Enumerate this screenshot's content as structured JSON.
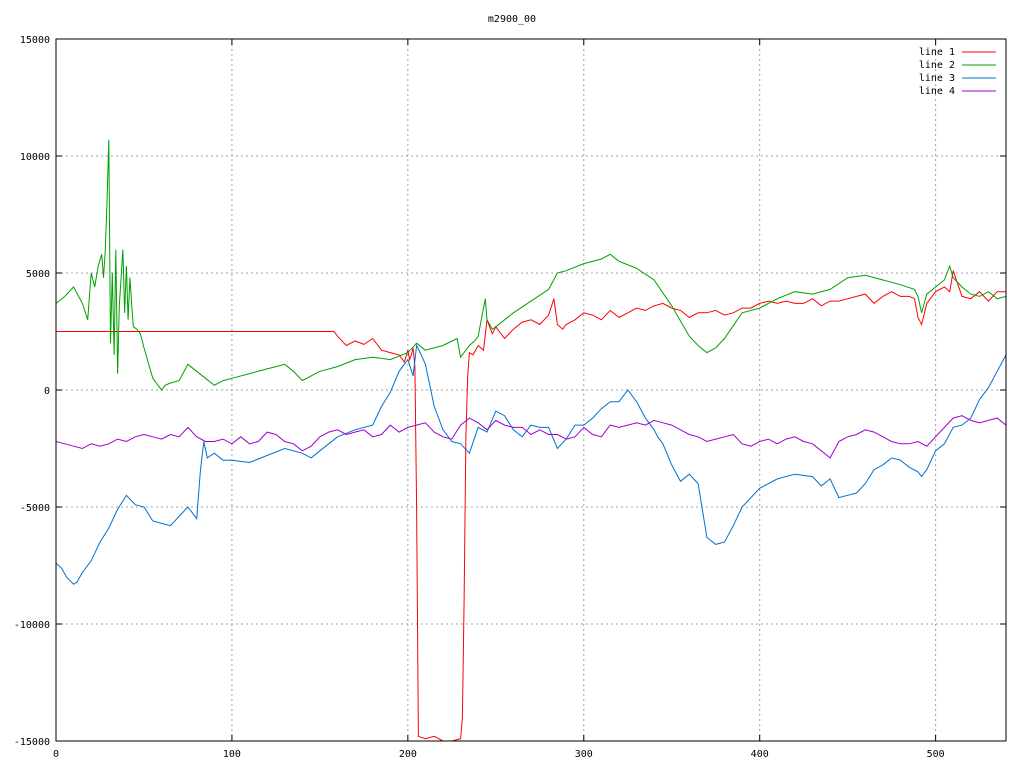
{
  "chart_data": {
    "type": "line",
    "title": "m2900_00",
    "xlabel": "",
    "ylabel": "",
    "xlim": [
      0,
      540
    ],
    "ylim": [
      -15000,
      15000
    ],
    "xticks": [
      0,
      100,
      200,
      300,
      400,
      500
    ],
    "yticks": [
      -15000,
      -10000,
      -5000,
      0,
      5000,
      10000,
      15000
    ],
    "grid": true,
    "legend_position": "top-right",
    "series": [
      {
        "name": "line 1",
        "color": "#ff0000",
        "x": [
          0,
          50,
          100,
          150,
          158,
          160,
          165,
          170,
          175,
          180,
          185,
          190,
          195,
          198,
          200,
          201,
          202,
          203,
          204,
          205,
          206,
          210,
          215,
          220,
          225,
          230,
          231,
          232,
          233,
          234,
          235,
          237,
          240,
          243,
          245,
          248,
          250,
          255,
          260,
          265,
          270,
          275,
          280,
          283,
          285,
          288,
          290,
          295,
          300,
          305,
          310,
          315,
          320,
          325,
          330,
          335,
          340,
          345,
          350,
          355,
          360,
          365,
          370,
          375,
          380,
          385,
          390,
          395,
          400,
          405,
          410,
          415,
          420,
          425,
          430,
          435,
          440,
          445,
          450,
          455,
          460,
          465,
          470,
          475,
          480,
          485,
          488,
          490,
          492,
          495,
          500,
          505,
          508,
          510,
          515,
          520,
          525,
          530,
          535,
          540
        ],
        "values": [
          2500,
          2500,
          2500,
          2500,
          2500,
          2300,
          1900,
          2100,
          1950,
          2200,
          1700,
          1600,
          1500,
          1200,
          1700,
          1300,
          1500,
          1800,
          1000,
          -5000,
          -14800,
          -14900,
          -14800,
          -15000,
          -15000,
          -14900,
          -14000,
          -9000,
          -2000,
          600,
          1600,
          1500,
          1900,
          1700,
          3000,
          2400,
          2700,
          2200,
          2600,
          2900,
          3000,
          2800,
          3200,
          3900,
          2800,
          2600,
          2800,
          3000,
          3300,
          3200,
          3000,
          3400,
          3100,
          3300,
          3500,
          3400,
          3600,
          3700,
          3500,
          3400,
          3100,
          3300,
          3300,
          3400,
          3200,
          3300,
          3500,
          3500,
          3700,
          3800,
          3700,
          3800,
          3700,
          3700,
          3900,
          3600,
          3800,
          3800,
          3900,
          4000,
          4100,
          3700,
          4000,
          4200,
          4000,
          4000,
          3900,
          3100,
          2800,
          3700,
          4200,
          4400,
          4200,
          5100,
          4000,
          3900,
          4200,
          3800,
          4200,
          4200
        ]
      },
      {
        "name": "line 2",
        "color": "#00a000",
        "x": [
          0,
          5,
          10,
          15,
          18,
          20,
          22,
          24,
          26,
          27,
          28,
          29,
          30,
          31,
          32,
          33,
          34,
          35,
          36,
          37,
          38,
          39,
          40,
          41,
          42,
          43,
          44,
          46,
          48,
          50,
          55,
          60,
          62,
          65,
          70,
          75,
          80,
          85,
          90,
          95,
          100,
          110,
          120,
          125,
          130,
          135,
          140,
          150,
          160,
          170,
          180,
          190,
          200,
          205,
          210,
          220,
          228,
          230,
          235,
          238,
          240,
          242,
          244,
          245,
          248,
          250,
          255,
          260,
          270,
          280,
          285,
          290,
          300,
          310,
          315,
          320,
          330,
          340,
          350,
          360,
          365,
          370,
          375,
          380,
          390,
          400,
          410,
          420,
          430,
          440,
          450,
          460,
          470,
          480,
          488,
          490,
          492,
          495,
          500,
          505,
          508,
          510,
          515,
          520,
          525,
          530,
          535,
          540
        ],
        "values": [
          3700,
          4000,
          4400,
          3700,
          3000,
          5000,
          4400,
          5300,
          5800,
          4800,
          6000,
          8000,
          10700,
          2000,
          5000,
          1500,
          6000,
          700,
          3600,
          4800,
          6000,
          3300,
          5300,
          3000,
          4800,
          3700,
          2700,
          2600,
          2400,
          1800,
          500,
          0,
          200,
          300,
          400,
          1100,
          800,
          500,
          200,
          400,
          500,
          700,
          900,
          1000,
          1100,
          800,
          400,
          800,
          1000,
          1300,
          1400,
          1300,
          1600,
          2000,
          1700,
          1900,
          2200,
          1400,
          1900,
          2100,
          2300,
          3100,
          3900,
          3000,
          2600,
          2700,
          3000,
          3300,
          3800,
          4300,
          5000,
          5100,
          5400,
          5600,
          5800,
          5500,
          5200,
          4700,
          3600,
          2300,
          1900,
          1600,
          1800,
          2200,
          3300,
          3500,
          3900,
          4200,
          4100,
          4300,
          4800,
          4900,
          4700,
          4500,
          4300,
          4000,
          3300,
          4100,
          4400,
          4700,
          5300,
          4800,
          4400,
          4100,
          4000,
          4200,
          3900,
          4000
        ]
      },
      {
        "name": "line 3",
        "color": "#0070d0",
        "x": [
          0,
          3,
          6,
          10,
          12,
          15,
          20,
          25,
          30,
          35,
          40,
          45,
          50,
          55,
          60,
          65,
          70,
          75,
          80,
          82,
          84,
          86,
          90,
          95,
          100,
          110,
          120,
          130,
          140,
          145,
          150,
          160,
          170,
          180,
          185,
          190,
          195,
          200,
          203,
          205,
          207,
          210,
          215,
          220,
          225,
          230,
          235,
          240,
          245,
          250,
          255,
          260,
          265,
          270,
          275,
          280,
          285,
          290,
          295,
          300,
          305,
          310,
          315,
          320,
          325,
          330,
          335,
          340,
          342,
          345,
          350,
          355,
          360,
          365,
          370,
          375,
          380,
          385,
          390,
          400,
          410,
          420,
          430,
          435,
          440,
          445,
          450,
          455,
          460,
          465,
          470,
          475,
          480,
          485,
          490,
          492,
          495,
          500,
          505,
          510,
          515,
          520,
          525,
          530,
          535,
          540
        ],
        "values": [
          -7400,
          -7600,
          -8000,
          -8300,
          -8200,
          -7800,
          -7300,
          -6500,
          -5900,
          -5100,
          -4500,
          -4900,
          -5000,
          -5600,
          -5700,
          -5800,
          -5400,
          -5000,
          -5500,
          -3500,
          -2200,
          -2900,
          -2700,
          -3000,
          -3000,
          -3100,
          -2800,
          -2500,
          -2700,
          -2900,
          -2600,
          -2000,
          -1700,
          -1500,
          -700,
          -100,
          800,
          1300,
          600,
          1900,
          1600,
          1100,
          -700,
          -1700,
          -2200,
          -2300,
          -2700,
          -1600,
          -1800,
          -900,
          -1100,
          -1700,
          -2000,
          -1500,
          -1600,
          -1600,
          -2500,
          -2100,
          -1500,
          -1500,
          -1200,
          -800,
          -500,
          -500,
          0,
          -500,
          -1200,
          -1700,
          -2000,
          -2300,
          -3200,
          -3900,
          -3600,
          -4000,
          -6300,
          -6600,
          -6500,
          -5800,
          -5000,
          -4200,
          -3800,
          -3600,
          -3700,
          -4100,
          -3800,
          -4600,
          -4500,
          -4400,
          -4000,
          -3400,
          -3200,
          -2900,
          -3000,
          -3300,
          -3500,
          -3700,
          -3400,
          -2600,
          -2300,
          -1600,
          -1500,
          -1200,
          -400,
          100,
          800,
          1500
        ]
      },
      {
        "name": "line 4",
        "color": "#a000d0",
        "x": [
          0,
          5,
          10,
          15,
          20,
          25,
          30,
          35,
          40,
          45,
          50,
          55,
          60,
          65,
          70,
          75,
          80,
          85,
          90,
          95,
          100,
          105,
          110,
          115,
          120,
          125,
          130,
          135,
          140,
          145,
          150,
          155,
          160,
          165,
          170,
          175,
          180,
          185,
          190,
          195,
          200,
          205,
          210,
          215,
          220,
          225,
          230,
          235,
          240,
          245,
          250,
          255,
          260,
          265,
          270,
          275,
          280,
          285,
          290,
          295,
          300,
          305,
          310,
          315,
          320,
          325,
          330,
          335,
          340,
          345,
          350,
          355,
          360,
          365,
          370,
          375,
          380,
          385,
          390,
          395,
          400,
          405,
          410,
          415,
          420,
          425,
          430,
          435,
          440,
          445,
          450,
          455,
          460,
          465,
          470,
          475,
          480,
          485,
          490,
          495,
          500,
          505,
          510,
          515,
          520,
          525,
          530,
          535,
          540
        ],
        "values": [
          -2200,
          -2300,
          -2400,
          -2500,
          -2300,
          -2400,
          -2300,
          -2100,
          -2200,
          -2000,
          -1900,
          -2000,
          -2100,
          -1900,
          -2000,
          -1600,
          -2000,
          -2200,
          -2200,
          -2100,
          -2300,
          -2000,
          -2300,
          -2200,
          -1800,
          -1900,
          -2200,
          -2300,
          -2600,
          -2400,
          -2000,
          -1800,
          -1700,
          -1900,
          -1800,
          -1700,
          -2000,
          -1900,
          -1500,
          -1800,
          -1600,
          -1500,
          -1400,
          -1800,
          -2000,
          -2100,
          -1500,
          -1200,
          -1400,
          -1700,
          -1300,
          -1500,
          -1600,
          -1600,
          -1900,
          -1700,
          -1900,
          -1900,
          -2100,
          -2000,
          -1600,
          -1900,
          -2000,
          -1500,
          -1600,
          -1500,
          -1400,
          -1500,
          -1300,
          -1400,
          -1500,
          -1700,
          -1900,
          -2000,
          -2200,
          -2100,
          -2000,
          -1900,
          -2300,
          -2400,
          -2200,
          -2100,
          -2300,
          -2100,
          -2000,
          -2200,
          -2300,
          -2600,
          -2900,
          -2200,
          -2000,
          -1900,
          -1700,
          -1800,
          -2000,
          -2200,
          -2300,
          -2300,
          -2200,
          -2400,
          -2000,
          -1600,
          -1200,
          -1100,
          -1300,
          -1400,
          -1300,
          -1200,
          -1500
        ]
      }
    ]
  }
}
